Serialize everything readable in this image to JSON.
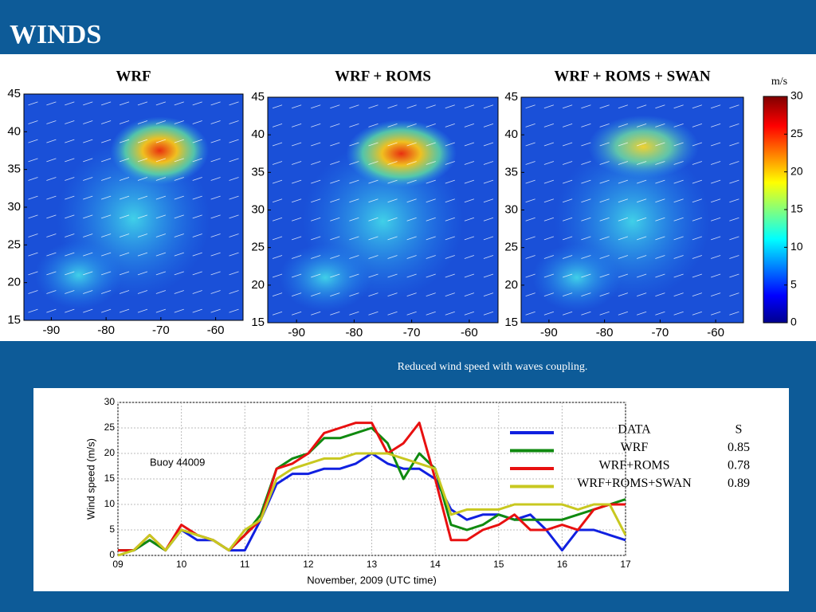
{
  "header": {
    "title": "WINDS"
  },
  "caption": "Reduced wind speed with waves coupling.",
  "chart_data": [
    {
      "type": "map",
      "title": "WRF",
      "xlim": [
        -95,
        -55
      ],
      "xticks": [
        -90,
        -80,
        -70,
        -60
      ],
      "ylim": [
        15,
        45
      ],
      "yticks": [
        15,
        20,
        25,
        30,
        35,
        40,
        45
      ]
    },
    {
      "type": "map",
      "title": "WRF + ROMS",
      "xlim": [
        -95,
        -55
      ],
      "xticks": [
        -90,
        -80,
        -70,
        -60
      ],
      "ylim": [
        15,
        45
      ],
      "yticks": [
        15,
        20,
        25,
        30,
        35,
        40,
        45
      ]
    },
    {
      "type": "map",
      "title": "WRF + ROMS + SWAN",
      "xlim": [
        -95,
        -55
      ],
      "xticks": [
        -90,
        -80,
        -70,
        -60
      ],
      "ylim": [
        15,
        45
      ],
      "yticks": [
        15,
        20,
        25,
        30,
        35,
        40,
        45
      ]
    },
    {
      "type": "colorbar",
      "title": "m/s",
      "ylim": [
        0,
        30
      ],
      "yticks": [
        0,
        5,
        10,
        15,
        20,
        25,
        30
      ]
    },
    {
      "type": "line",
      "ylabel": "Wind speed (m/s)",
      "xlabel": "November, 2009 (UTC time)",
      "annotation": "Buoy 44009",
      "xlim": [
        9,
        17
      ],
      "xticks": [
        {
          "value": 9,
          "label": "09"
        },
        10,
        11,
        12,
        13,
        14,
        15,
        16,
        17
      ],
      "ylim": [
        0,
        30
      ],
      "yticks": [
        0,
        5,
        10,
        15,
        20,
        25,
        30
      ],
      "grid": true,
      "skill_header": "S",
      "x": [
        9,
        9.25,
        9.5,
        9.75,
        10,
        10.25,
        10.5,
        10.75,
        11,
        11.25,
        11.5,
        11.75,
        12,
        12.25,
        12.5,
        12.75,
        13,
        13.25,
        13.5,
        13.75,
        14,
        14.25,
        14.5,
        14.75,
        15,
        15.25,
        15.5,
        15.75,
        16,
        16.25,
        16.5,
        16.75,
        17
      ],
      "series": [
        {
          "name": "DATA",
          "color": "#1020e0",
          "values": [
            1,
            1,
            3,
            1,
            5,
            3,
            3,
            1,
            1,
            7,
            14,
            16,
            16,
            17,
            17,
            18,
            20,
            18,
            17,
            17,
            15,
            9,
            7,
            8,
            8,
            7,
            8,
            5,
            1,
            5,
            5,
            4,
            3
          ]
        },
        {
          "name": "WRF",
          "color": "#108a10",
          "skill": 0.85,
          "values": [
            1,
            1,
            3,
            1,
            5,
            4,
            3,
            1,
            4,
            8,
            17,
            19,
            20,
            23,
            23,
            24,
            25,
            22,
            15,
            20,
            17,
            6,
            5,
            6,
            8,
            7,
            7,
            7,
            7,
            8,
            9,
            10,
            11
          ]
        },
        {
          "name": "WRF+ROMS",
          "color": "#e81010",
          "skill": 0.78,
          "values": [
            1,
            1,
            4,
            1,
            6,
            4,
            3,
            1,
            4,
            7,
            17,
            18,
            20,
            24,
            25,
            26,
            26,
            20,
            22,
            26,
            15,
            3,
            3,
            5,
            6,
            8,
            5,
            5,
            6,
            5,
            9,
            10,
            10
          ]
        },
        {
          "name": "WRF+ROMS+SWAN",
          "color": "#c8c820",
          "skill": 0.89,
          "values": [
            0,
            1,
            4,
            1,
            5,
            4,
            3,
            1,
            5,
            7,
            15,
            17,
            18,
            19,
            19,
            20,
            20,
            20,
            19,
            18,
            17,
            8,
            9,
            9,
            9,
            10,
            10,
            10,
            10,
            9,
            10,
            10,
            4
          ]
        }
      ]
    }
  ]
}
